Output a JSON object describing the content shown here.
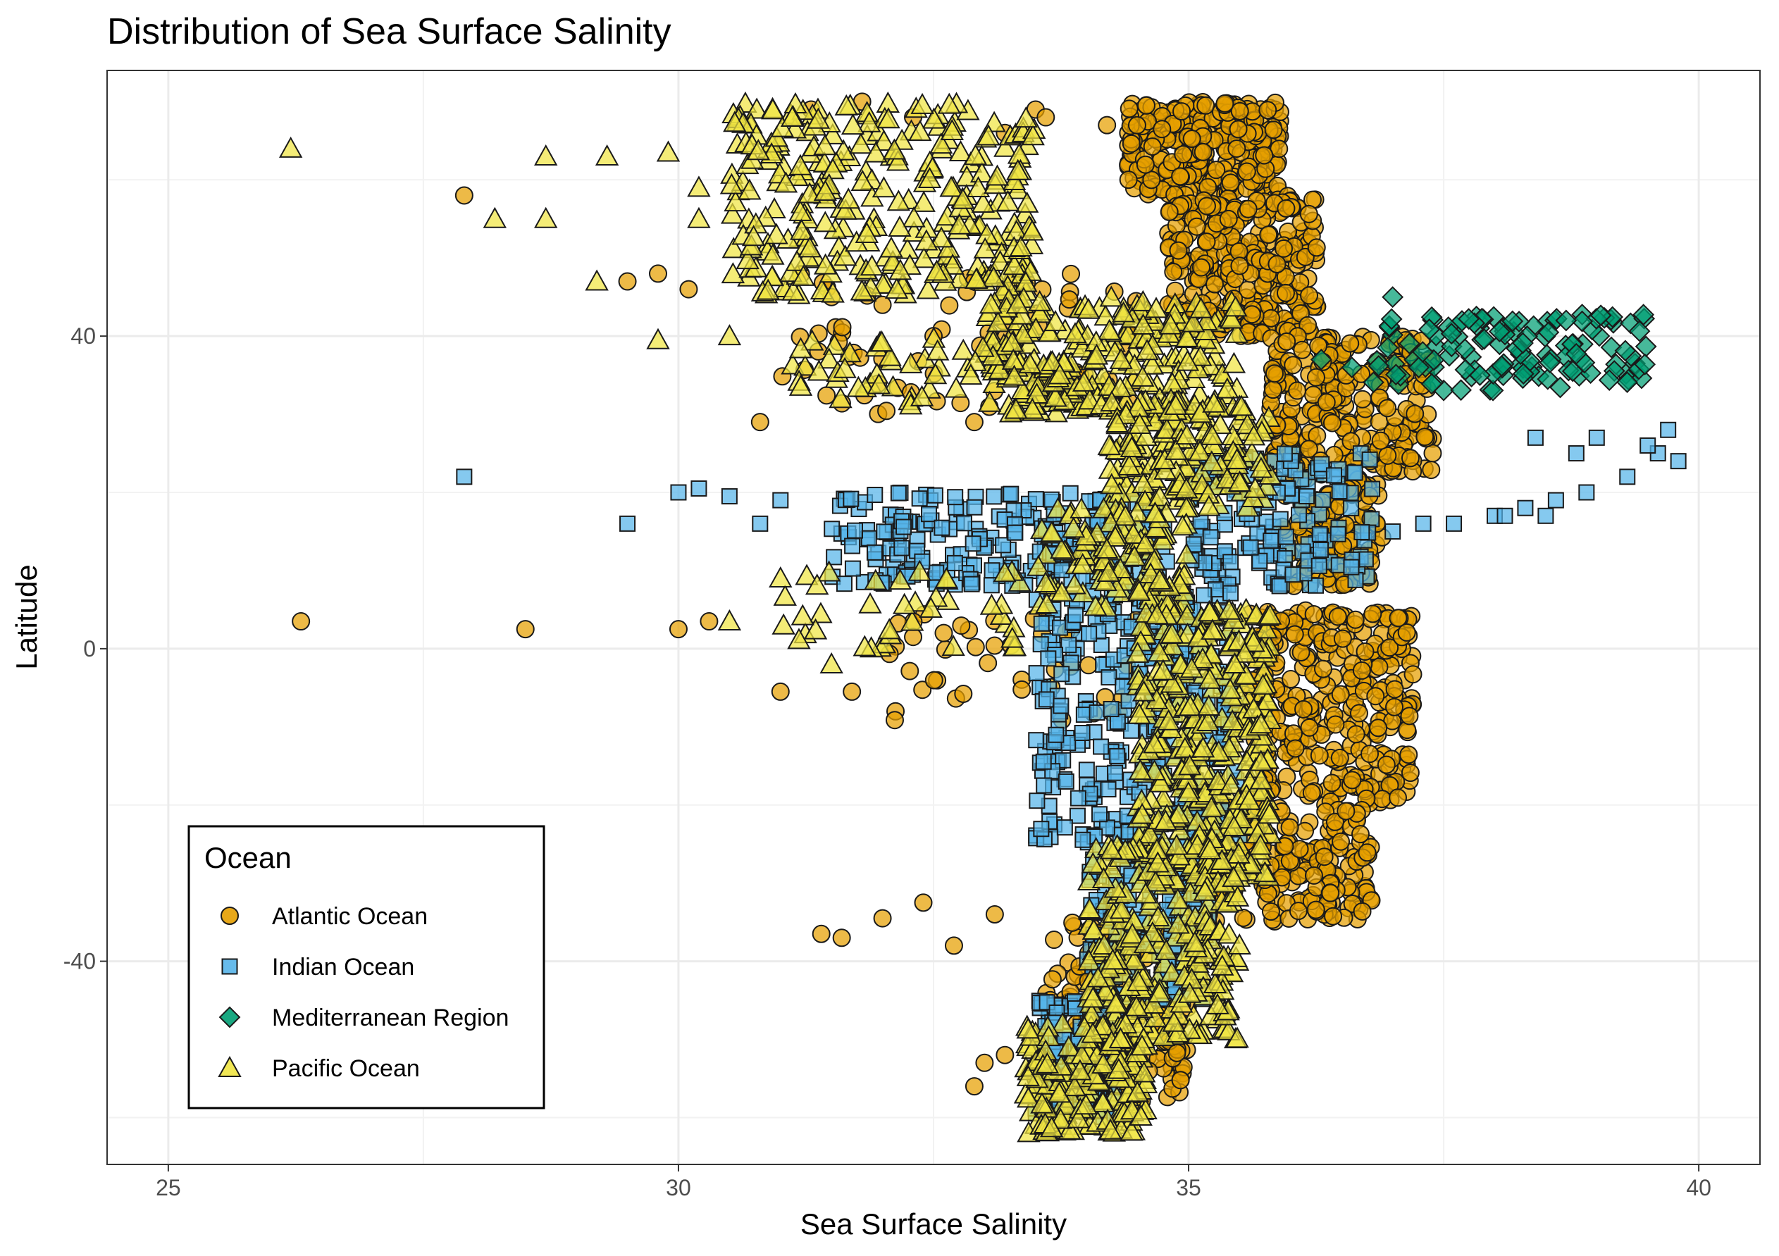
{
  "chart_data": {
    "type": "scatter",
    "title": "Distribution of Sea Surface Salinity",
    "xlabel": "Sea Surface Salinity",
    "ylabel": "Latitude",
    "xlim": [
      24.4,
      40.6
    ],
    "ylim": [
      -66,
      74
    ],
    "x_ticks": [
      25,
      30,
      35,
      40
    ],
    "x_tick_labels": [
      "25",
      "30",
      "35",
      "40"
    ],
    "y_ticks": [
      -40,
      0,
      40
    ],
    "y_tick_labels": [
      "-40",
      "0",
      "40"
    ],
    "grid": true,
    "legend": {
      "title": "Ocean",
      "position": "bottom-left inside plot"
    },
    "series": [
      {
        "name": "Atlantic Ocean",
        "shape": "circle",
        "color": "#E69F00",
        "points": [
          [
            26.3,
            3.5
          ],
          [
            28.5,
            2.5
          ],
          [
            30.0,
            2.5
          ],
          [
            30.3,
            3.5
          ],
          [
            31.0,
            -5.5
          ],
          [
            31.7,
            -5.5
          ],
          [
            27.9,
            58
          ],
          [
            29.5,
            47
          ],
          [
            29.8,
            48
          ],
          [
            30.1,
            46
          ],
          [
            30.8,
            29
          ],
          [
            31.6,
            -37
          ],
          [
            31.4,
            -36.5
          ],
          [
            32.3,
            1.5
          ],
          [
            32.6,
            2
          ],
          [
            32.4,
            -32.5
          ],
          [
            32.0,
            -34.5
          ],
          [
            33.1,
            -34
          ],
          [
            32.7,
            -38
          ],
          [
            32.3,
            68
          ],
          [
            33.2,
            66
          ],
          [
            33.5,
            69
          ],
          [
            33.6,
            68
          ],
          [
            34.2,
            67
          ],
          [
            31.8,
            70
          ],
          [
            31.3,
            69
          ],
          [
            32.9,
            47
          ],
          [
            33.2,
            46
          ],
          [
            31.5,
            45
          ],
          [
            32.0,
            44
          ],
          [
            32.5,
            40
          ],
          [
            32.9,
            29
          ],
          [
            33.9,
            -48
          ],
          [
            33.5,
            -55
          ],
          [
            33.0,
            -53
          ],
          [
            33.2,
            -52
          ],
          [
            32.9,
            -56
          ],
          [
            33.7,
            -49
          ]
        ],
        "bands": [
          {
            "lat": [
              58,
              70
            ],
            "x": [
              34.4,
              35.9
            ],
            "n": 320
          },
          {
            "lat": [
              40,
              58
            ],
            "x": [
              34.8,
              36.3
            ],
            "n": 300
          },
          {
            "lat": [
              22,
              40
            ],
            "x": [
              35.8,
              37.4
            ],
            "n": 260
          },
          {
            "lat": [
              8,
              22
            ],
            "x": [
              35.9,
              36.9
            ],
            "n": 120
          },
          {
            "lat": [
              -20,
              5
            ],
            "x": [
              35.6,
              37.2
            ],
            "n": 320
          },
          {
            "lat": [
              -35,
              -20
            ],
            "x": [
              35.1,
              36.8
            ],
            "n": 200
          },
          {
            "lat": [
              -58,
              -35
            ],
            "x": [
              33.6,
              35.0
            ],
            "n": 160
          },
          {
            "lat": [
              30,
              48
            ],
            "x": [
              31.0,
              34.5
            ],
            "n": 70
          },
          {
            "lat": [
              -10,
              5
            ],
            "x": [
              32.0,
              34.5
            ],
            "n": 40
          }
        ]
      },
      {
        "name": "Indian Ocean",
        "shape": "square",
        "color": "#56B4E9",
        "points": [
          [
            27.9,
            22
          ],
          [
            29.5,
            16
          ],
          [
            30.0,
            20
          ],
          [
            30.2,
            20.5
          ],
          [
            30.5,
            19.5
          ],
          [
            31.0,
            19
          ],
          [
            30.8,
            16
          ],
          [
            33.8,
            -17
          ],
          [
            37.0,
            15
          ],
          [
            37.3,
            16
          ],
          [
            37.6,
            16
          ],
          [
            38.0,
            17
          ],
          [
            38.3,
            18
          ],
          [
            38.6,
            19
          ],
          [
            38.9,
            20
          ],
          [
            39.3,
            22
          ],
          [
            39.6,
            25
          ],
          [
            39.8,
            24
          ],
          [
            39.7,
            28
          ],
          [
            38.4,
            27
          ],
          [
            39.0,
            27
          ],
          [
            39.5,
            26
          ],
          [
            38.8,
            25
          ],
          [
            38.1,
            17
          ],
          [
            38.5,
            17
          ]
        ],
        "bands": [
          {
            "lat": [
              8,
              20
            ],
            "x": [
              31.5,
              34.8
            ],
            "n": 220
          },
          {
            "lat": [
              8,
              25
            ],
            "x": [
              35.0,
              36.8
            ],
            "n": 160
          },
          {
            "lat": [
              -25,
              8
            ],
            "x": [
              33.5,
              35.5
            ],
            "n": 320
          },
          {
            "lat": [
              -45,
              -25
            ],
            "x": [
              34.0,
              35.2
            ],
            "n": 160
          },
          {
            "lat": [
              -60,
              -45
            ],
            "x": [
              33.5,
              34.3
            ],
            "n": 160
          }
        ]
      },
      {
        "name": "Mediterranean Region",
        "shape": "diamond",
        "color": "#009E73",
        "points": [
          [
            37.0,
            45
          ],
          [
            38.7,
            42
          ],
          [
            36.3,
            37
          ],
          [
            36.6,
            36
          ]
        ],
        "bands": [
          {
            "lat": [
              33,
              43
            ],
            "x": [
              36.8,
              39.5
            ],
            "n": 130
          }
        ]
      },
      {
        "name": "Pacific Ocean",
        "shape": "triangle",
        "color": "#F0E442",
        "points": [
          [
            26.2,
            64
          ],
          [
            28.2,
            55
          ],
          [
            28.7,
            63
          ],
          [
            29.3,
            63
          ],
          [
            29.9,
            63.5
          ],
          [
            28.7,
            55
          ],
          [
            29.2,
            47
          ],
          [
            29.8,
            39.5
          ],
          [
            30.5,
            40
          ],
          [
            30.2,
            59
          ],
          [
            30.2,
            55
          ],
          [
            30.5,
            3.5
          ],
          [
            31.0,
            9
          ],
          [
            31.5,
            -2
          ]
        ],
        "bands": [
          {
            "lat": [
              45,
              70
            ],
            "x": [
              30.5,
              33.5
            ],
            "n": 320
          },
          {
            "lat": [
              30,
              45
            ],
            "x": [
              33.0,
              35.5
            ],
            "n": 260
          },
          {
            "lat": [
              18,
              32
            ],
            "x": [
              34.2,
              35.8
            ],
            "n": 180
          },
          {
            "lat": [
              5,
              18
            ],
            "x": [
              33.5,
              35.0
            ],
            "n": 120
          },
          {
            "lat": [
              -30,
              5
            ],
            "x": [
              34.5,
              35.8
            ],
            "n": 360
          },
          {
            "lat": [
              -50,
              -25
            ],
            "x": [
              34.0,
              35.5
            ],
            "n": 260
          },
          {
            "lat": [
              -62,
              -48
            ],
            "x": [
              33.4,
              34.6
            ],
            "n": 200
          },
          {
            "lat": [
              30,
              40
            ],
            "x": [
              31.0,
              33.5
            ],
            "n": 50
          },
          {
            "lat": [
              0,
              10
            ],
            "x": [
              31.0,
              33.5
            ],
            "n": 40
          }
        ]
      }
    ]
  }
}
